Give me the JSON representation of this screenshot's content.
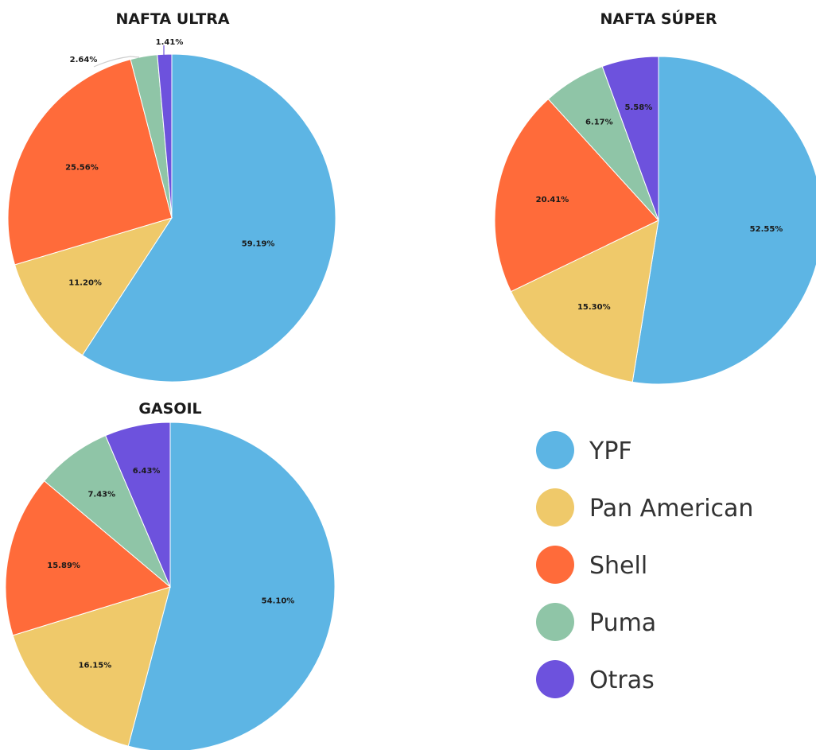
{
  "chart_data": [
    {
      "type": "pie",
      "title": "NAFTA ULTRA",
      "categories": [
        "YPF",
        "Pan American",
        "Shell",
        "Puma",
        "Otras"
      ],
      "values": [
        59.19,
        11.2,
        25.56,
        2.64,
        1.41
      ],
      "labels": [
        "59.19%",
        "11.20%",
        "25.56%",
        "2.64%",
        "1.41%"
      ],
      "start": "12 o'clock",
      "direction": "clockwise"
    },
    {
      "type": "pie",
      "title": "NAFTA SÚPER",
      "categories": [
        "YPF",
        "Pan American",
        "Shell",
        "Puma",
        "Otras"
      ],
      "values": [
        52.55,
        15.3,
        20.41,
        6.17,
        5.58
      ],
      "labels": [
        "52.55%",
        "15.30%",
        "20.41%",
        "6.17%",
        "5.58%"
      ],
      "start": "12 o'clock",
      "direction": "clockwise"
    },
    {
      "type": "pie",
      "title": "GASOIL",
      "categories": [
        "YPF",
        "Pan American",
        "Shell",
        "Puma",
        "Otras"
      ],
      "values": [
        54.1,
        16.15,
        15.89,
        7.43,
        6.43
      ],
      "labels": [
        "54.10%",
        "16.15%",
        "15.89%",
        "7.43%",
        "6.43%"
      ],
      "start": "12 o'clock",
      "direction": "clockwise"
    }
  ],
  "legend": {
    "placement": "bottom-right",
    "items": [
      {
        "label": "YPF",
        "color": "#5DB5E4"
      },
      {
        "label": "Pan American",
        "color": "#EFC96A"
      },
      {
        "label": "Shell",
        "color": "#FF6B3A"
      },
      {
        "label": "Puma",
        "color": "#8FC5A7"
      },
      {
        "label": "Otras",
        "color": "#6D52DD"
      }
    ]
  }
}
